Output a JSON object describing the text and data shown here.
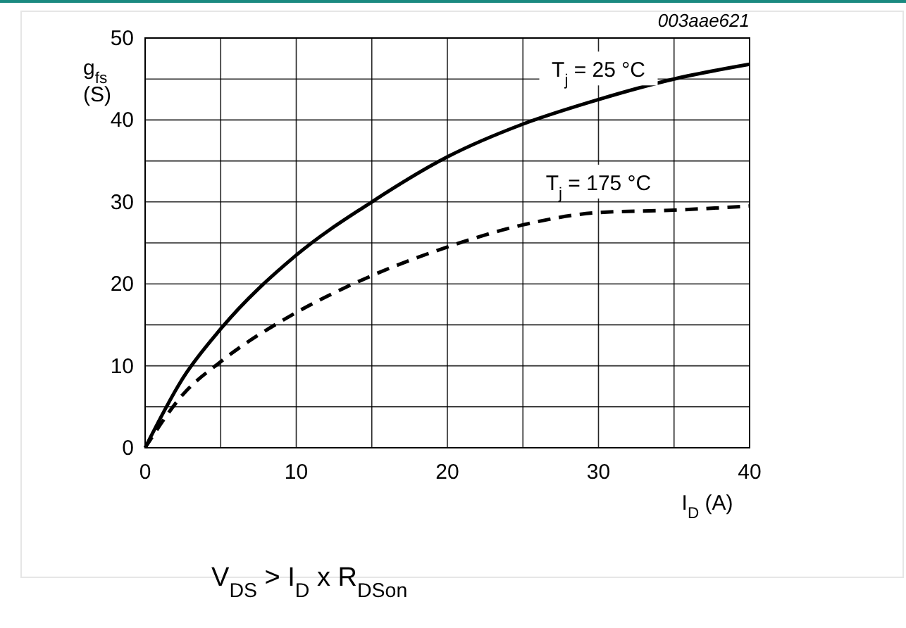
{
  "chart_data": {
    "type": "line",
    "xlabel": "I$_{D}$ (A)",
    "ylabel": "g$_{fs}$ (S)",
    "x": [
      0,
      2.5,
      5,
      10,
      15,
      20,
      25,
      30,
      35,
      40
    ],
    "series": [
      {
        "name": "T$_{j}$ = 25 °C",
        "color": "#000000",
        "line_style": "solid",
        "values": [
          0,
          8.5,
          14.5,
          23.5,
          30,
          35.5,
          39.5,
          42.5,
          45,
          46.8
        ]
      },
      {
        "name": "T$_{j}$ = 175 °C",
        "color": "#000000",
        "line_style": "dashed",
        "values": [
          0,
          6.5,
          10.5,
          16.5,
          21,
          24.5,
          27.2,
          28.7,
          29,
          29.5
        ]
      }
    ],
    "xlim": [
      0,
      40
    ],
    "ylim": [
      0,
      50
    ],
    "xticks": [
      0,
      {
        "value": 5,
        "label": null
      },
      10,
      {
        "value": 15,
        "label": null
      },
      20,
      {
        "value": 25,
        "label": null
      },
      30,
      {
        "value": 35,
        "label": null
      },
      40
    ],
    "yticks": [
      0,
      {
        "value": 5,
        "label": null
      },
      10,
      {
        "value": 15,
        "label": null
      },
      20,
      {
        "value": 25,
        "label": null
      },
      30,
      {
        "value": 35,
        "label": null
      },
      40,
      {
        "value": 45,
        "label": null
      },
      50
    ],
    "grid": true,
    "marker": "none",
    "annotations": [
      "003aae621",
      "V$_{DS}$ > I$_{D}$ x R$_{DSon}$"
    ]
  }
}
